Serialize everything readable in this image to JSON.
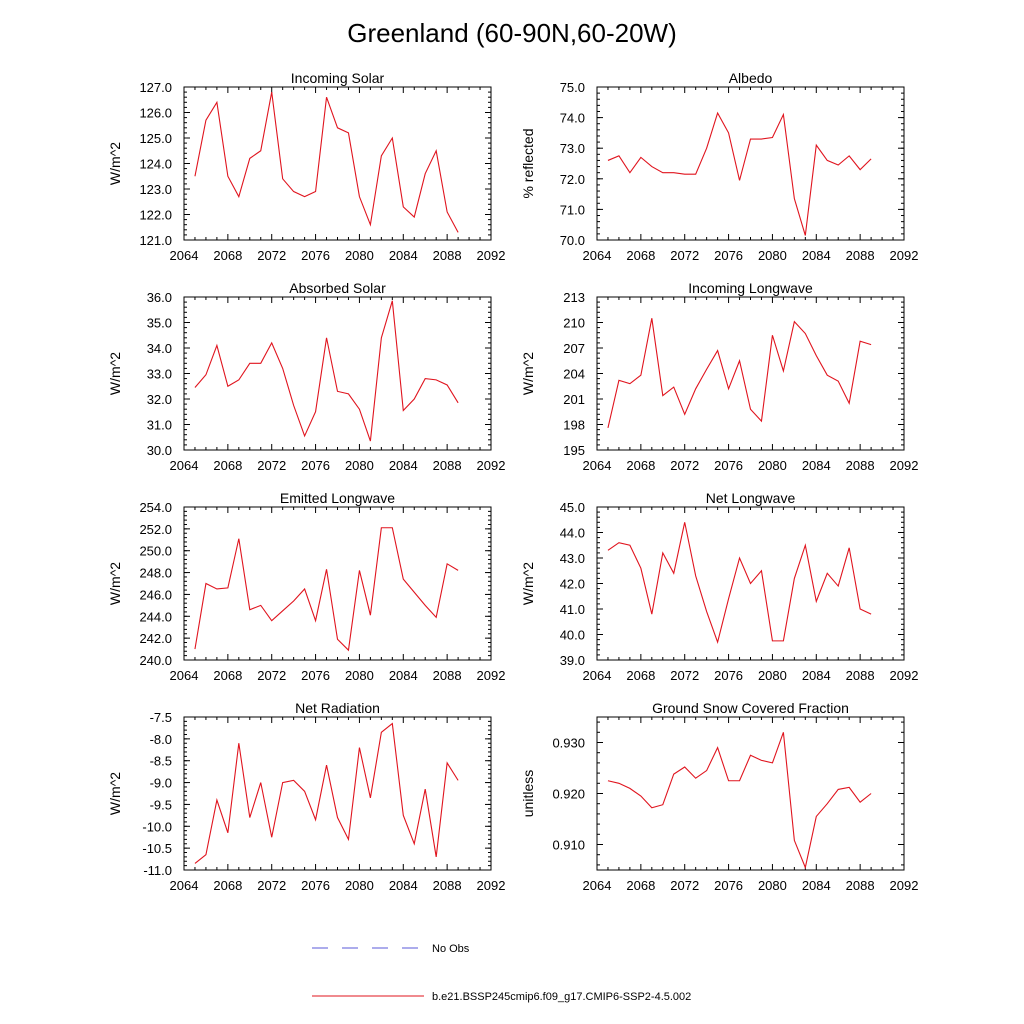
{
  "figure": {
    "title": "Greenland (60-90N,60-20W)"
  },
  "legend": {
    "items": [
      {
        "label": "No Obs",
        "color": "#5a5ad8",
        "dash": true
      },
      {
        "label": "b.e21.BSSP245cmip6.f09_g17.CMIP6-SSP2-4.5.002",
        "color": "#e0141e",
        "dash": false
      }
    ]
  },
  "chart_data": [
    {
      "type": "line",
      "title": "Incoming Solar",
      "ylabel": "W/m^2",
      "xlim": [
        2064,
        2092
      ],
      "ylim": [
        121.0,
        127.0
      ],
      "xticks": [
        2064,
        2068,
        2072,
        2076,
        2080,
        2084,
        2088,
        2092
      ],
      "yticks": [
        121.0,
        122.0,
        123.0,
        124.0,
        125.0,
        126.0,
        127.0
      ],
      "ytick_labels": [
        "121.0",
        "122.0",
        "123.0",
        "124.0",
        "125.0",
        "126.0",
        "127.0"
      ],
      "x": [
        2065,
        2066,
        2067,
        2068,
        2069,
        2070,
        2071,
        2072,
        2073,
        2074,
        2075,
        2076,
        2077,
        2078,
        2079,
        2080,
        2081,
        2082,
        2083,
        2084,
        2085,
        2086,
        2087,
        2088,
        2089
      ],
      "series": [
        {
          "color": "#e0141e",
          "values": [
            123.5,
            125.7,
            126.4,
            123.5,
            122.7,
            124.2,
            124.5,
            126.8,
            123.4,
            122.9,
            122.7,
            122.9,
            126.6,
            125.4,
            125.2,
            122.7,
            121.6,
            124.3,
            125.0,
            122.3,
            121.9,
            123.6,
            124.5,
            122.1,
            121.3
          ]
        }
      ]
    },
    {
      "type": "line",
      "title": "Albedo",
      "ylabel": "% reflected",
      "xlim": [
        2064,
        2092
      ],
      "ylim": [
        70.0,
        75.0
      ],
      "xticks": [
        2064,
        2068,
        2072,
        2076,
        2080,
        2084,
        2088,
        2092
      ],
      "yticks": [
        70.0,
        71.0,
        72.0,
        73.0,
        74.0,
        75.0
      ],
      "ytick_labels": [
        "70.0",
        "71.0",
        "72.0",
        "73.0",
        "74.0",
        "75.0"
      ],
      "x": [
        2065,
        2066,
        2067,
        2068,
        2069,
        2070,
        2071,
        2072,
        2073,
        2074,
        2075,
        2076,
        2077,
        2078,
        2079,
        2080,
        2081,
        2082,
        2083,
        2084,
        2085,
        2086,
        2087,
        2088,
        2089
      ],
      "series": [
        {
          "color": "#e0141e",
          "values": [
            72.6,
            72.75,
            72.2,
            72.7,
            72.4,
            72.2,
            72.2,
            72.15,
            72.15,
            73.0,
            74.15,
            73.5,
            71.95,
            73.3,
            73.3,
            73.35,
            74.1,
            71.35,
            70.15,
            73.1,
            72.6,
            72.45,
            72.75,
            72.3,
            72.65
          ]
        }
      ]
    },
    {
      "type": "line",
      "title": "Absorbed Solar",
      "ylabel": "W/m^2",
      "xlim": [
        2064,
        2092
      ],
      "ylim": [
        30.0,
        36.0
      ],
      "xticks": [
        2064,
        2068,
        2072,
        2076,
        2080,
        2084,
        2088,
        2092
      ],
      "yticks": [
        30.0,
        31.0,
        32.0,
        33.0,
        34.0,
        35.0,
        36.0
      ],
      "ytick_labels": [
        "30.0",
        "31.0",
        "32.0",
        "33.0",
        "34.0",
        "35.0",
        "36.0"
      ],
      "x": [
        2065,
        2066,
        2067,
        2068,
        2069,
        2070,
        2071,
        2072,
        2073,
        2074,
        2075,
        2076,
        2077,
        2078,
        2079,
        2080,
        2081,
        2082,
        2083,
        2084,
        2085,
        2086,
        2087,
        2088,
        2089
      ],
      "series": [
        {
          "color": "#e0141e",
          "values": [
            32.45,
            32.95,
            34.1,
            32.5,
            32.75,
            33.4,
            33.4,
            34.2,
            33.2,
            31.75,
            30.55,
            31.5,
            34.4,
            32.3,
            32.2,
            31.6,
            30.35,
            34.4,
            35.85,
            31.55,
            32.0,
            32.8,
            32.75,
            32.55,
            31.85
          ]
        }
      ]
    },
    {
      "type": "line",
      "title": "Incoming Longwave",
      "ylabel": "W/m^2",
      "xlim": [
        2064,
        2092
      ],
      "ylim": [
        195,
        213
      ],
      "xticks": [
        2064,
        2068,
        2072,
        2076,
        2080,
        2084,
        2088,
        2092
      ],
      "yticks": [
        195,
        198,
        201,
        204,
        207,
        210,
        213
      ],
      "ytick_labels": [
        "195",
        "198",
        "201",
        "204",
        "207",
        "210",
        "213"
      ],
      "x": [
        2065,
        2066,
        2067,
        2068,
        2069,
        2070,
        2071,
        2072,
        2073,
        2074,
        2075,
        2076,
        2077,
        2078,
        2079,
        2080,
        2081,
        2082,
        2083,
        2084,
        2085,
        2086,
        2087,
        2088,
        2089
      ],
      "series": [
        {
          "color": "#e0141e",
          "values": [
            197.6,
            203.2,
            202.8,
            203.8,
            210.5,
            201.4,
            202.4,
            199.2,
            202.2,
            204.5,
            206.7,
            202.2,
            205.5,
            199.8,
            198.4,
            208.5,
            204.3,
            210.1,
            208.7,
            206.1,
            203.8,
            203.1,
            200.5,
            207.8,
            207.4
          ]
        }
      ]
    },
    {
      "type": "line",
      "title": "Emitted Longwave",
      "ylabel": "W/m^2",
      "xlim": [
        2064,
        2092
      ],
      "ylim": [
        240.0,
        254.0
      ],
      "xticks": [
        2064,
        2068,
        2072,
        2076,
        2080,
        2084,
        2088,
        2092
      ],
      "yticks": [
        240.0,
        242.0,
        244.0,
        246.0,
        248.0,
        250.0,
        252.0,
        254.0
      ],
      "ytick_labels": [
        "240.0",
        "242.0",
        "244.0",
        "246.0",
        "248.0",
        "250.0",
        "252.0",
        "254.0"
      ],
      "x": [
        2065,
        2066,
        2067,
        2068,
        2069,
        2070,
        2071,
        2072,
        2073,
        2074,
        2075,
        2076,
        2077,
        2078,
        2079,
        2080,
        2081,
        2082,
        2083,
        2084,
        2085,
        2086,
        2087,
        2088,
        2089
      ],
      "series": [
        {
          "color": "#e0141e",
          "values": [
            241.0,
            247.0,
            246.5,
            246.6,
            251.1,
            244.6,
            245.0,
            243.6,
            244.5,
            245.4,
            246.5,
            243.6,
            248.3,
            241.9,
            240.9,
            248.2,
            244.1,
            252.1,
            252.1,
            247.4,
            246.2,
            245.0,
            243.9,
            248.8,
            248.2
          ]
        }
      ]
    },
    {
      "type": "line",
      "title": "Net Longwave",
      "ylabel": "W/m^2",
      "xlim": [
        2064,
        2092
      ],
      "ylim": [
        39.0,
        45.0
      ],
      "xticks": [
        2064,
        2068,
        2072,
        2076,
        2080,
        2084,
        2088,
        2092
      ],
      "yticks": [
        39.0,
        40.0,
        41.0,
        42.0,
        43.0,
        44.0,
        45.0
      ],
      "ytick_labels": [
        "39.0",
        "40.0",
        "41.0",
        "42.0",
        "43.0",
        "44.0",
        "45.0"
      ],
      "x": [
        2065,
        2066,
        2067,
        2068,
        2069,
        2070,
        2071,
        2072,
        2073,
        2074,
        2075,
        2076,
        2077,
        2078,
        2079,
        2080,
        2081,
        2082,
        2083,
        2084,
        2085,
        2086,
        2087,
        2088,
        2089
      ],
      "series": [
        {
          "color": "#e0141e",
          "values": [
            43.3,
            43.6,
            43.5,
            42.6,
            40.8,
            43.2,
            42.4,
            44.4,
            42.3,
            40.9,
            39.7,
            41.4,
            43.0,
            42.0,
            42.5,
            39.75,
            39.75,
            42.2,
            43.5,
            41.3,
            42.4,
            41.9,
            43.4,
            41.0,
            40.8
          ]
        }
      ]
    },
    {
      "type": "line",
      "title": "Net Radiation",
      "ylabel": "W/m^2",
      "xlim": [
        2064,
        2092
      ],
      "ylim": [
        -11.0,
        -7.5
      ],
      "xticks": [
        2064,
        2068,
        2072,
        2076,
        2080,
        2084,
        2088,
        2092
      ],
      "yticks": [
        -11.0,
        -10.5,
        -10.0,
        -9.5,
        -9.0,
        -8.5,
        -8.0,
        -7.5
      ],
      "ytick_labels": [
        "-11.0",
        "-10.5",
        "-10.0",
        "-9.5",
        "-9.0",
        "-8.5",
        "-8.0",
        "-7.5"
      ],
      "x": [
        2065,
        2066,
        2067,
        2068,
        2069,
        2070,
        2071,
        2072,
        2073,
        2074,
        2075,
        2076,
        2077,
        2078,
        2079,
        2080,
        2081,
        2082,
        2083,
        2084,
        2085,
        2086,
        2087,
        2088,
        2089
      ],
      "series": [
        {
          "color": "#e0141e",
          "values": [
            -10.85,
            -10.65,
            -9.4,
            -10.15,
            -8.1,
            -9.8,
            -9.0,
            -10.25,
            -9.0,
            -8.95,
            -9.2,
            -9.85,
            -8.6,
            -9.8,
            -10.3,
            -8.2,
            -9.35,
            -7.85,
            -7.65,
            -9.75,
            -10.4,
            -9.15,
            -10.7,
            -8.55,
            -8.95
          ]
        }
      ]
    },
    {
      "type": "line",
      "title": "Ground Snow Covered Fraction",
      "ylabel": "unitless",
      "xlim": [
        2064,
        2092
      ],
      "ylim": [
        0.905,
        0.935
      ],
      "xticks": [
        2064,
        2068,
        2072,
        2076,
        2080,
        2084,
        2088,
        2092
      ],
      "yticks": [
        0.91,
        0.92,
        0.93
      ],
      "ytick_labels": [
        "0.910",
        "0.920",
        "0.930"
      ],
      "x": [
        2065,
        2066,
        2067,
        2068,
        2069,
        2070,
        2071,
        2072,
        2073,
        2074,
        2075,
        2076,
        2077,
        2078,
        2079,
        2080,
        2081,
        2082,
        2083,
        2084,
        2085,
        2086,
        2087,
        2088,
        2089
      ],
      "series": [
        {
          "color": "#e0141e",
          "values": [
            0.9225,
            0.922,
            0.921,
            0.9195,
            0.9172,
            0.9178,
            0.9238,
            0.9252,
            0.923,
            0.9245,
            0.929,
            0.9225,
            0.9225,
            0.9275,
            0.9265,
            0.926,
            0.932,
            0.9108,
            0.9055,
            0.9155,
            0.918,
            0.9208,
            0.9212,
            0.9183,
            0.92
          ]
        }
      ]
    }
  ]
}
